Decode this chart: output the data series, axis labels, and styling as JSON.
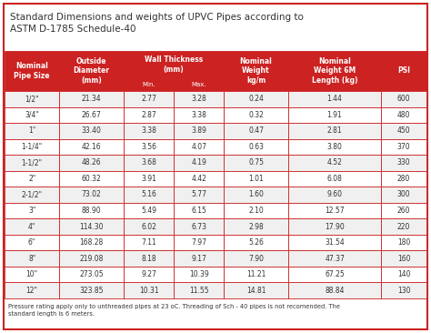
{
  "title": "Standard Dimensions and weights of UPVC Pipes according to\nASTM D-1785 Schedule-40",
  "footer": "Pressure rating apply only to unthreaded pipes at 23 oC. Threading of Sch - 40 pipes is not recomended. The\nstandard length is 6 meters.",
  "rows": [
    [
      "1/2\"",
      "21.34",
      "2.77",
      "3.28",
      "0.24",
      "1.44",
      "600"
    ],
    [
      "3/4\"",
      "26.67",
      "2.87",
      "3.38",
      "0.32",
      "1.91",
      "480"
    ],
    [
      "1\"",
      "33.40",
      "3.38",
      "3.89",
      "0.47",
      "2.81",
      "450"
    ],
    [
      "1-1/4\"",
      "42.16",
      "3.56",
      "4.07",
      "0.63",
      "3.80",
      "370"
    ],
    [
      "1-1/2\"",
      "48.26",
      "3.68",
      "4.19",
      "0.75",
      "4.52",
      "330"
    ],
    [
      "2\"",
      "60.32",
      "3.91",
      "4.42",
      "1.01",
      "6.08",
      "280"
    ],
    [
      "2-1/2\"",
      "73.02",
      "5.16",
      "5.77",
      "1.60",
      "9.60",
      "300"
    ],
    [
      "3\"",
      "88.90",
      "5.49",
      "6.15",
      "2.10",
      "12.57",
      "260"
    ],
    [
      "4\"",
      "114.30",
      "6.02",
      "6.73",
      "2.98",
      "17.90",
      "220"
    ],
    [
      "6\"",
      "168.28",
      "7.11",
      "7.97",
      "5.26",
      "31.54",
      "180"
    ],
    [
      "8\"",
      "219.08",
      "8.18",
      "9.17",
      "7.90",
      "47.37",
      "160"
    ],
    [
      "10\"",
      "273.05",
      "9.27",
      "10.39",
      "11.21",
      "67.25",
      "140"
    ],
    [
      "12\"",
      "323.85",
      "10.31",
      "11.55",
      "14.81",
      "88.84",
      "130"
    ]
  ],
  "col_headers_top": [
    "Nominal\nPipe Size",
    "Outside\nDiameter\n(mm)",
    "Wall Thickness\n(mm)",
    "Nominal\nWeight\nkg/m",
    "Nominal\nWeight 6M\nLength (kg)",
    "PSI"
  ],
  "col_sub": [
    "Min.",
    "Max."
  ],
  "header_bg": "#cc2222",
  "header_text": "#ffffff",
  "border_color": "#cc2222",
  "outer_border": "#cc2222",
  "title_color": "#333333",
  "footer_color": "#333333",
  "row_bg_even": "#f0f0f0",
  "row_bg_odd": "#ffffff"
}
